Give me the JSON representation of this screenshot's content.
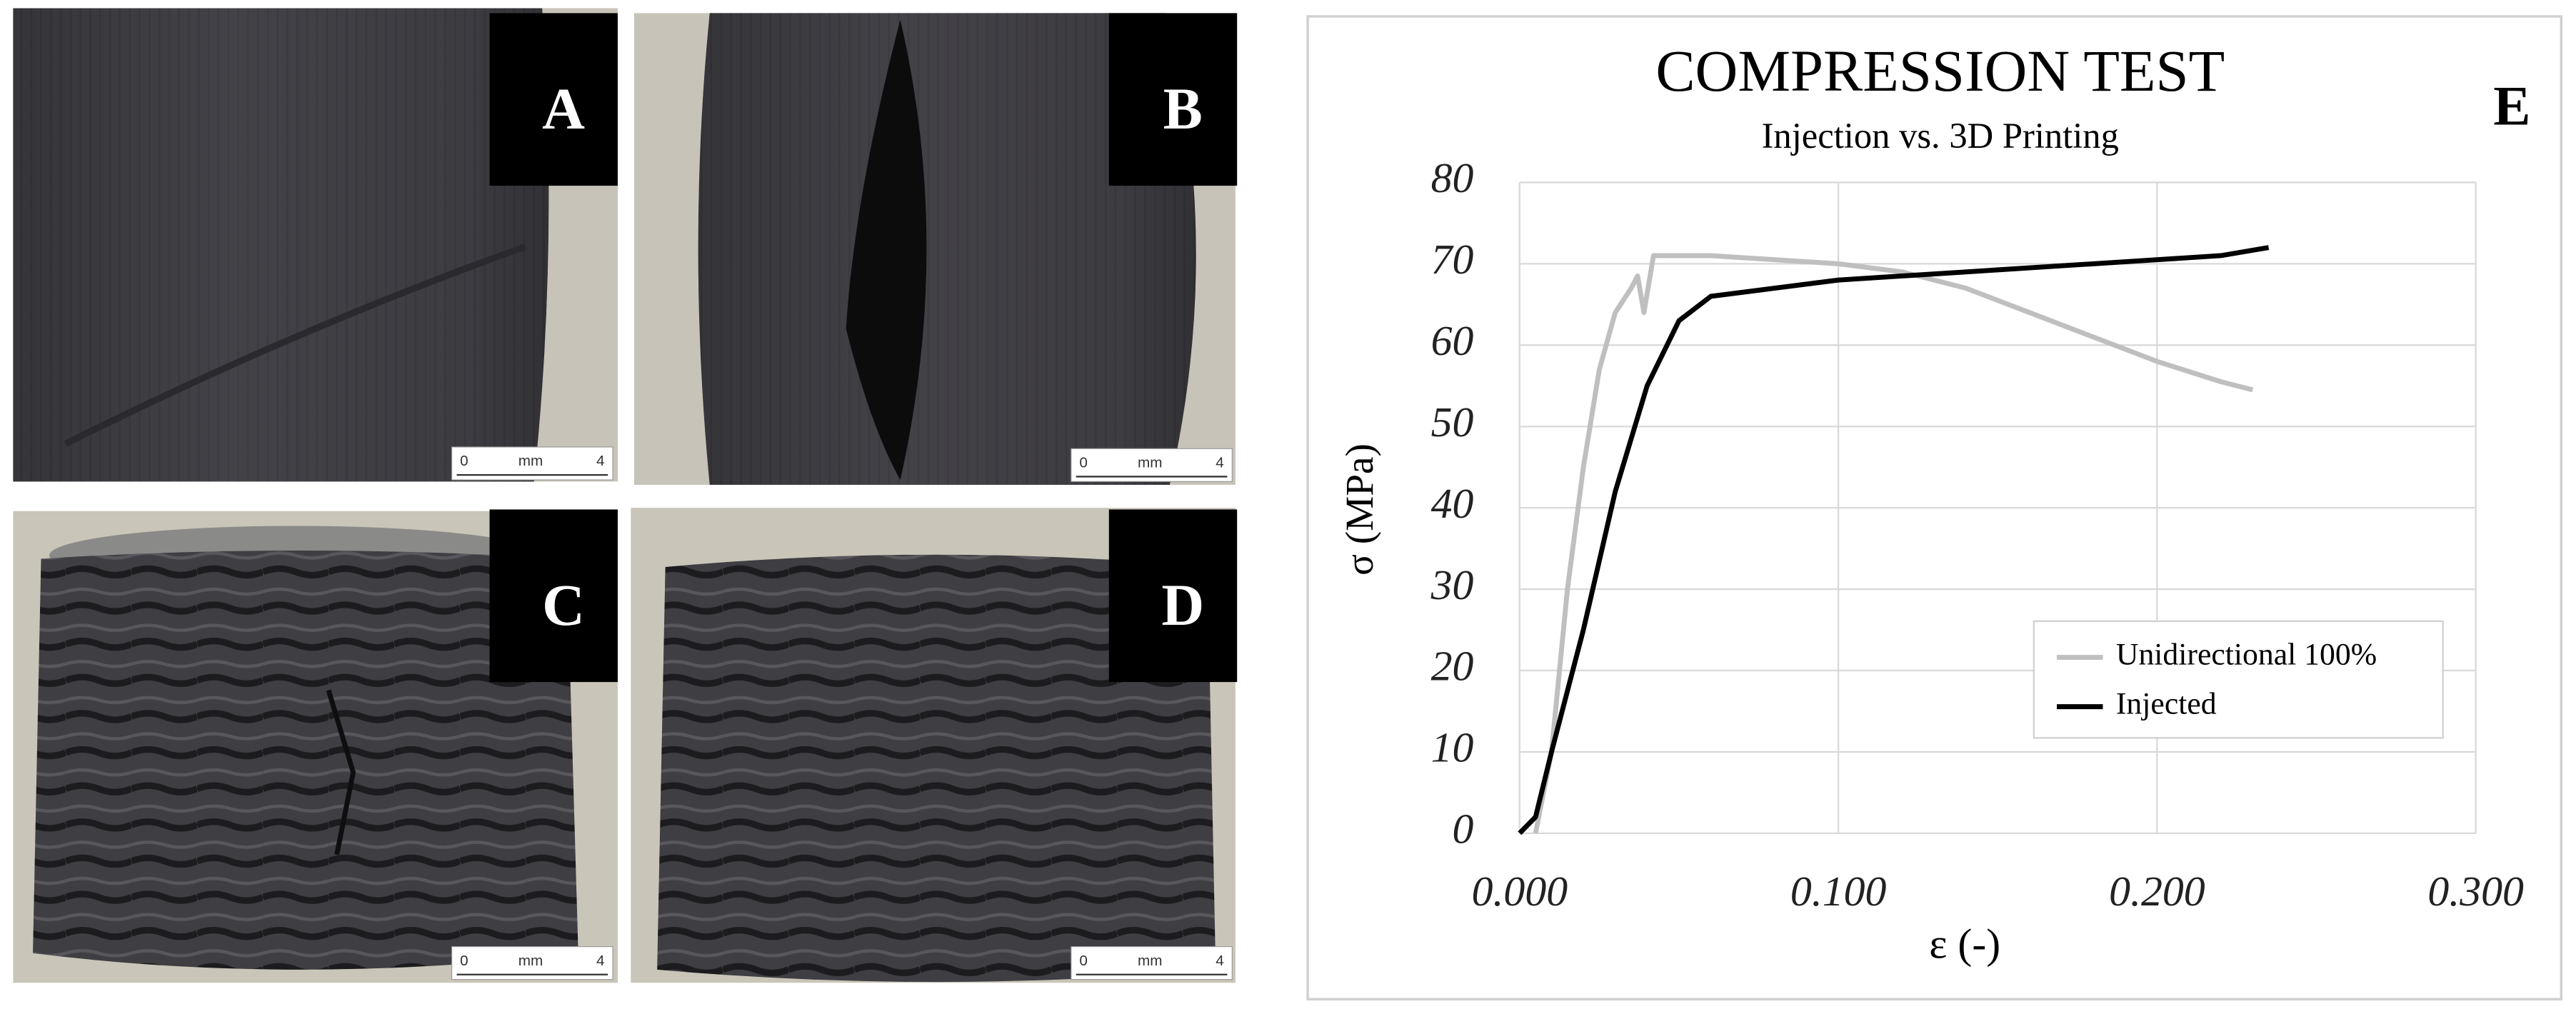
{
  "panels": [
    {
      "label": "A",
      "scale": [
        "0",
        "mm",
        "4"
      ]
    },
    {
      "label": "B",
      "scale": [
        "0",
        "mm",
        "4"
      ]
    },
    {
      "label": "C",
      "scale": [
        "0",
        "mm",
        "4"
      ]
    },
    {
      "label": "D",
      "scale": [
        "0",
        "mm",
        "4"
      ]
    }
  ],
  "chart_data": {
    "type": "line",
    "panel_label": "E",
    "title": "COMPRESSION TEST",
    "subtitle": "Injection vs. 3D Printing",
    "x_label": "ε (-)",
    "y_label": "σ (MPa)",
    "xlim": [
      0,
      0.3
    ],
    "ylim": [
      0,
      80
    ],
    "xticks": [
      {
        "value": 0,
        "label": "0.000"
      },
      {
        "value": 0.1,
        "label": "0.100"
      },
      {
        "value": 0.2,
        "label": "0.200"
      },
      {
        "value": 0.3,
        "label": "0.300"
      }
    ],
    "yticks": [
      0,
      10,
      20,
      30,
      40,
      50,
      60,
      70,
      80
    ],
    "grid": true,
    "legend": "lower right",
    "series": [
      {
        "name": "Unidirectional 100%",
        "color": "#bfbfbf",
        "x": [
          0.005,
          0.01,
          0.015,
          0.02,
          0.025,
          0.03,
          0.035,
          0.037,
          0.039,
          0.042,
          0.06,
          0.08,
          0.1,
          0.12,
          0.14,
          0.16,
          0.18,
          0.2,
          0.22,
          0.23
        ],
        "values": [
          0,
          10,
          30,
          45,
          57,
          64,
          67,
          68.5,
          64,
          71,
          71,
          70.5,
          70,
          69,
          67,
          64,
          61,
          58,
          55.5,
          54.5
        ]
      },
      {
        "name": "Injected",
        "color": "#000000",
        "x": [
          0,
          0.005,
          0.01,
          0.02,
          0.03,
          0.04,
          0.05,
          0.06,
          0.08,
          0.1,
          0.12,
          0.14,
          0.16,
          0.18,
          0.2,
          0.22,
          0.235
        ],
        "values": [
          0,
          2,
          10,
          25,
          42,
          55,
          63,
          66,
          67,
          68,
          68.5,
          69,
          69.5,
          70,
          70.5,
          71,
          72
        ]
      }
    ]
  }
}
